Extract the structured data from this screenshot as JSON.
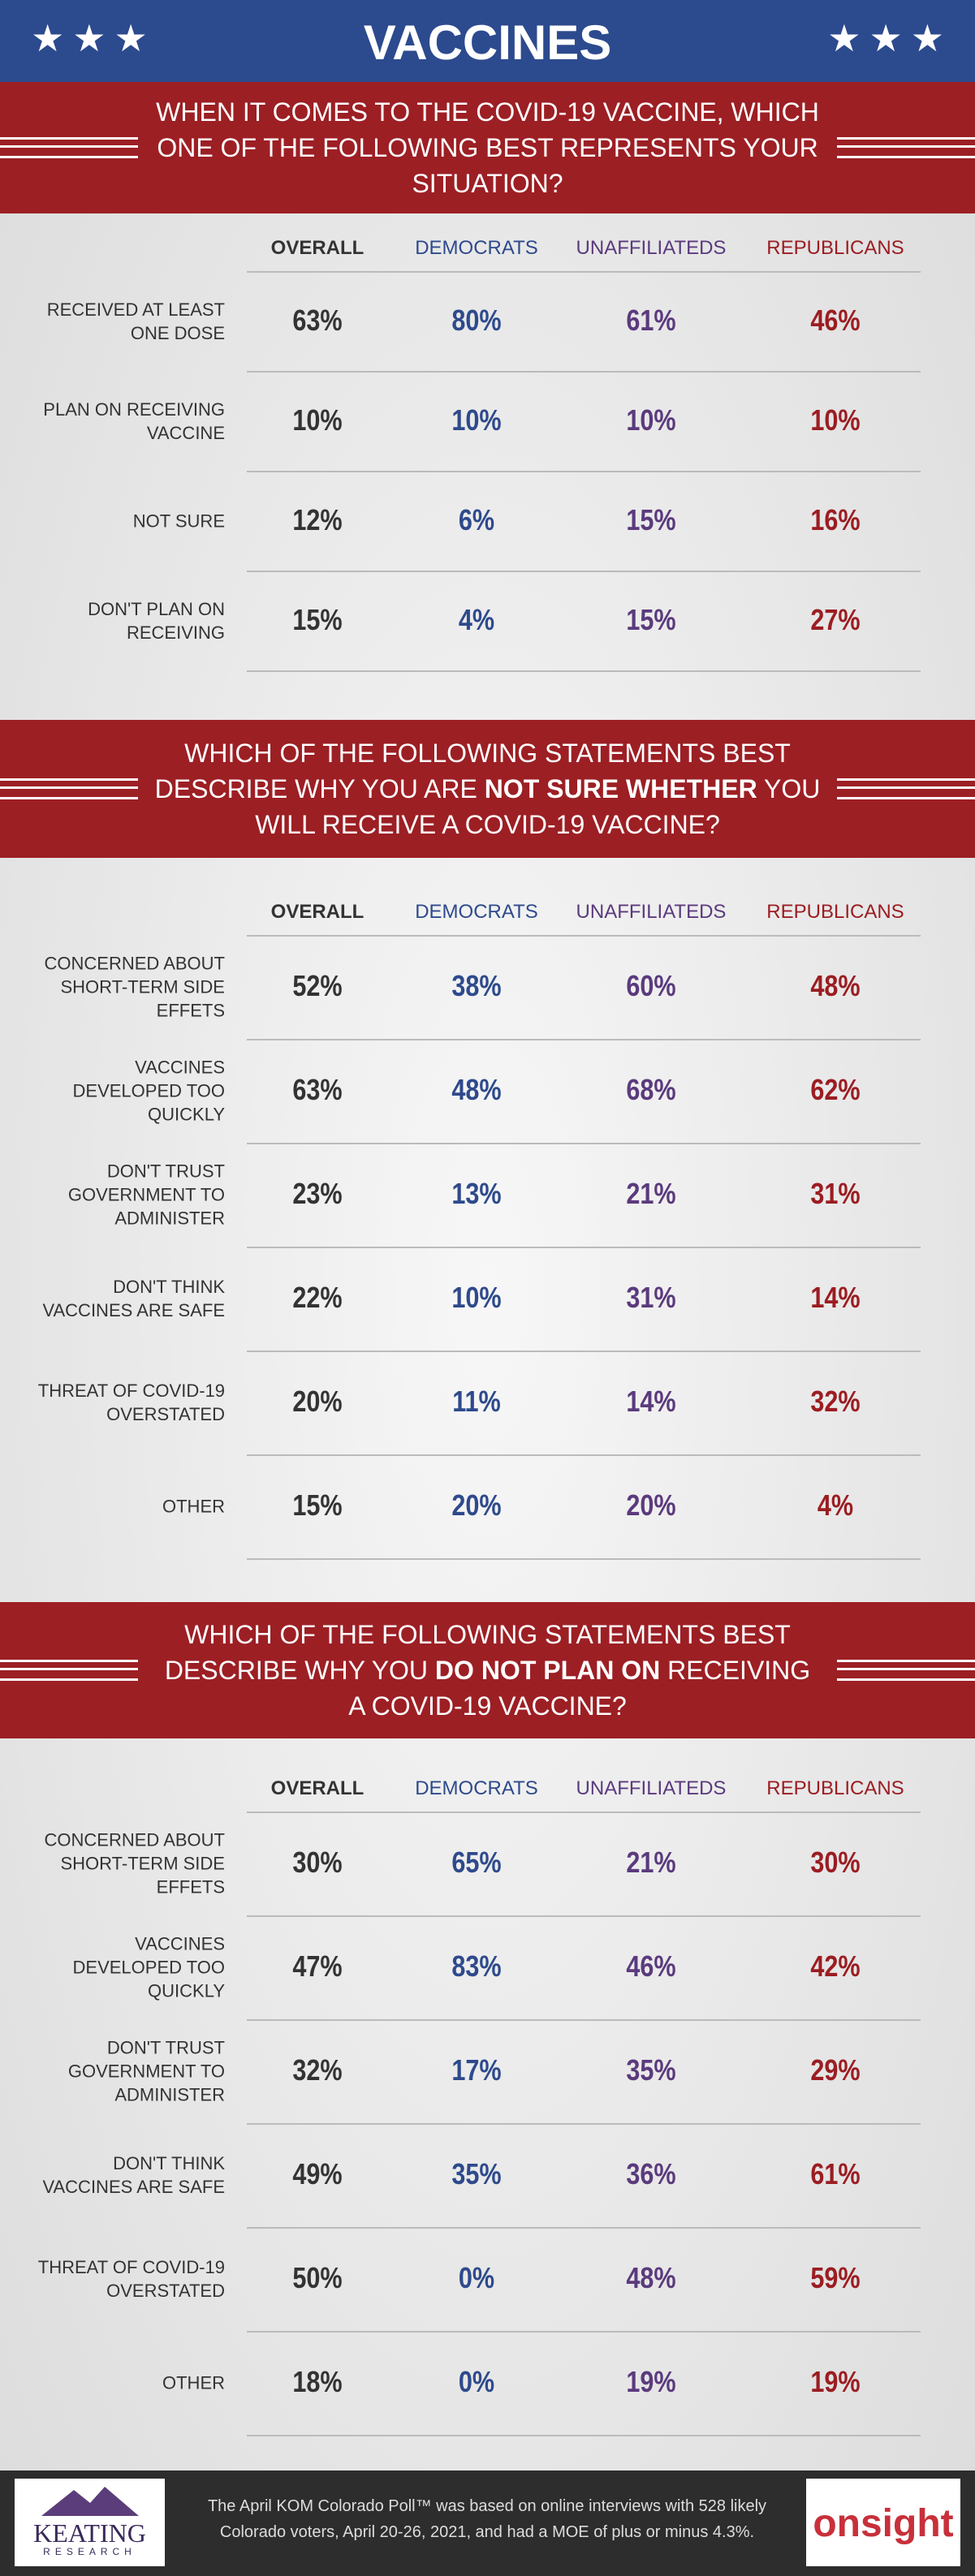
{
  "header": {
    "title": "VACCINES"
  },
  "sections": [
    {
      "question": [
        {
          "text": "WHEN IT COMES TO THE COVID-19 VACCINE, WHICH ONE OF THE FOLLOWING BEST REPRESENTS YOUR SITUATION?",
          "bold": false
        }
      ],
      "columns": [
        "OVERALL",
        "DEMOCRATS",
        "UNAFFILIATEDS",
        "REPUBLICANS"
      ],
      "rows": [
        {
          "label": "RECEIVED AT LEAST ONE DOSE",
          "values": [
            "63%",
            "80%",
            "61%",
            "46%"
          ]
        },
        {
          "label": "PLAN ON RECEIVING VACCINE",
          "values": [
            "10%",
            "10%",
            "10%",
            "10%"
          ]
        },
        {
          "label": "NOT SURE",
          "values": [
            "12%",
            "6%",
            "15%",
            "16%"
          ]
        },
        {
          "label": "DON'T PLAN ON RECEIVING",
          "values": [
            "15%",
            "4%",
            "15%",
            "27%"
          ]
        }
      ]
    },
    {
      "question": [
        {
          "text": "WHICH OF THE FOLLOWING STATEMENTS BEST DESCRIBE WHY YOU ARE ",
          "bold": false
        },
        {
          "text": "NOT SURE WHETHER",
          "bold": true
        },
        {
          "text": " YOU WILL RECEIVE A COVID-19 VACCINE?",
          "bold": false
        }
      ],
      "columns": [
        "OVERALL",
        "DEMOCRATS",
        "UNAFFILIATEDS",
        "REPUBLICANS"
      ],
      "rows": [
        {
          "label": "CONCERNED ABOUT SHORT-TERM SIDE EFFETS",
          "values": [
            "52%",
            "38%",
            "60%",
            "48%"
          ]
        },
        {
          "label": "VACCINES DEVELOPED TOO QUICKLY",
          "values": [
            "63%",
            "48%",
            "68%",
            "62%"
          ]
        },
        {
          "label": "DON'T TRUST GOVERNMENT TO ADMINISTER",
          "values": [
            "23%",
            "13%",
            "21%",
            "31%"
          ]
        },
        {
          "label": "DON'T THINK VACCINES ARE SAFE",
          "values": [
            "22%",
            "10%",
            "31%",
            "14%"
          ]
        },
        {
          "label": "THREAT OF COVID-19 OVERSTATED",
          "values": [
            "20%",
            "11%",
            "14%",
            "32%"
          ]
        },
        {
          "label": "OTHER",
          "values": [
            "15%",
            "20%",
            "20%",
            "4%"
          ]
        }
      ]
    },
    {
      "question": [
        {
          "text": "WHICH OF THE FOLLOWING STATEMENTS BEST DESCRIBE WHY YOU ",
          "bold": false
        },
        {
          "text": "DO NOT PLAN ON",
          "bold": true
        },
        {
          "text": " RECEIVING A COVID-19 VACCINE?",
          "bold": false
        }
      ],
      "columns": [
        "OVERALL",
        "DEMOCRATS",
        "UNAFFILIATEDS",
        "REPUBLICANS"
      ],
      "rows": [
        {
          "label": "CONCERNED ABOUT SHORT-TERM SIDE EFFETS",
          "values": [
            "30%",
            "65%",
            "21%",
            "30%"
          ]
        },
        {
          "label": "VACCINES DEVELOPED TOO QUICKLY",
          "values": [
            "47%",
            "83%",
            "46%",
            "42%"
          ]
        },
        {
          "label": "DON'T TRUST GOVERNMENT TO ADMINISTER",
          "values": [
            "32%",
            "17%",
            "35%",
            "29%"
          ]
        },
        {
          "label": "DON'T THINK VACCINES ARE SAFE",
          "values": [
            "49%",
            "35%",
            "36%",
            "61%"
          ]
        },
        {
          "label": "THREAT OF COVID-19 OVERSTATED",
          "values": [
            "50%",
            "0%",
            "48%",
            "59%"
          ]
        },
        {
          "label": "OTHER",
          "values": [
            "18%",
            "0%",
            "19%",
            "19%"
          ]
        }
      ]
    }
  ],
  "footer": {
    "left_logo": {
      "name": "KEATING",
      "sub": "RESEARCH"
    },
    "text": "The April KOM Colorado Poll™ was based on online interviews with 528 likely Colorado voters, April 20-26, 2021, and had a MOE of plus or minus 4.3%.",
    "right_logo": "onsight"
  }
}
